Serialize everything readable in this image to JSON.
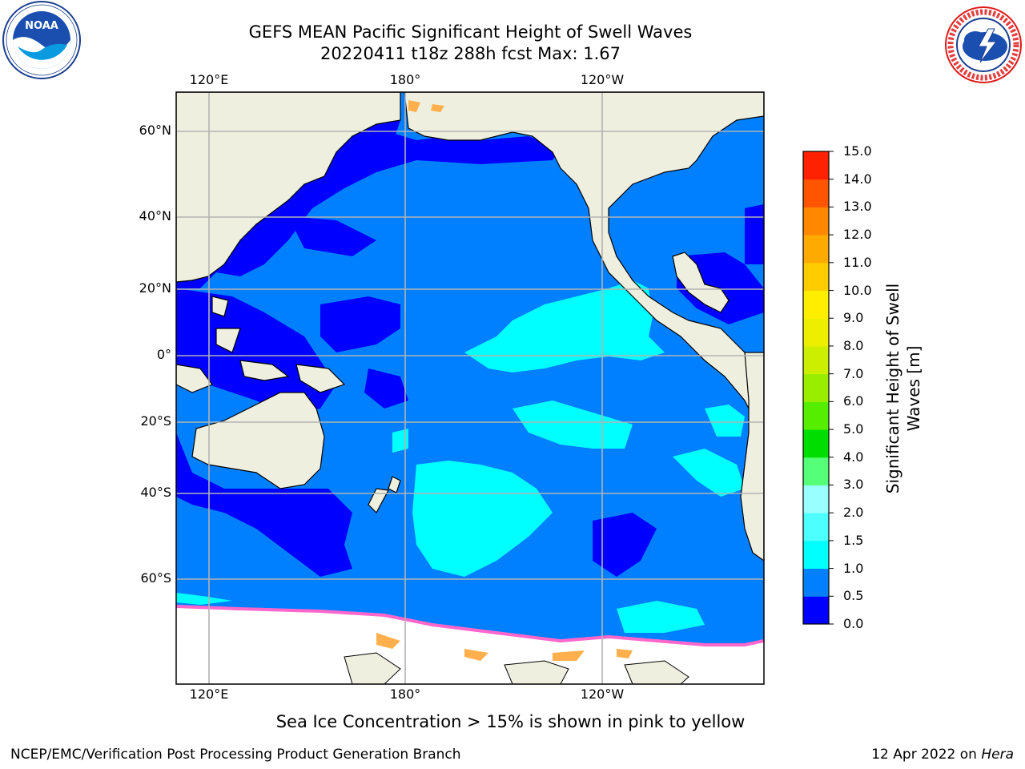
{
  "title": {
    "line1": "GEFS MEAN Pacific Significant Height of Swell Waves",
    "line2": "20220411 t18z 288h fcst   Max: 1.67"
  },
  "logos": {
    "left": "noaa-logo",
    "right": "national-weather-service-logo"
  },
  "map": {
    "lon_labels": [
      "120°E",
      "180°",
      "120°W"
    ],
    "lat_labels": [
      "60°N",
      "40°N",
      "20°N",
      "0°",
      "20°S",
      "40°S",
      "60°S"
    ],
    "colors": {
      "land": "#efefdf",
      "sea_ice": "#ffffff",
      "coast": "#000000",
      "grid": "#b3b3b3",
      "ice_edge": [
        "#ff66cc",
        "#ffb04d",
        "#ffe066"
      ]
    }
  },
  "colorbar": {
    "title_line1": "Significant Height of Swell",
    "title_line2": "Waves [m]",
    "ticks": [
      "15.0",
      "14.0",
      "13.0",
      "12.0",
      "11.0",
      "10.0",
      "9.0",
      "8.0",
      "7.0",
      "6.0",
      "5.0",
      "4.0",
      "3.0",
      "2.0",
      "1.5",
      "1.0",
      "0.5",
      "0.0"
    ],
    "colors_bottom_to_top": [
      "#0000ff",
      "#0080ff",
      "#00ffff",
      "#4dffff",
      "#99ffff",
      "#55ff77",
      "#00dd00",
      "#55ee00",
      "#99ee00",
      "#ccee00",
      "#eeee00",
      "#ffee00",
      "#ffcc00",
      "#ffaa00",
      "#ff8800",
      "#ff5500",
      "#ff2200"
    ]
  },
  "note": "Sea Ice Concentration > 15% is shown in pink to yellow",
  "footer": {
    "left": "NCEP/EMC/Verification Post Processing Product Generation Branch",
    "right_prefix": "12 Apr 2022 on ",
    "right_italic": "Hera"
  }
}
